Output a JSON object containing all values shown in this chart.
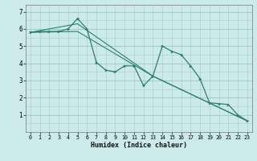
{
  "xlabel": "Humidex (Indice chaleur)",
  "bg_color": "#cceaea",
  "line_color": "#2e7d6e",
  "xlim": [
    -0.5,
    23.5
  ],
  "ylim": [
    0,
    7.4
  ],
  "yticks": [
    1,
    2,
    3,
    4,
    5,
    6,
    7
  ],
  "xticks": [
    0,
    1,
    2,
    3,
    4,
    5,
    6,
    7,
    8,
    9,
    10,
    11,
    12,
    13,
    14,
    15,
    16,
    17,
    18,
    19,
    20,
    21,
    22,
    23
  ],
  "series": [
    [
      0,
      5.8
    ],
    [
      1,
      5.85
    ],
    [
      2,
      5.85
    ],
    [
      3,
      5.85
    ],
    [
      4,
      6.0
    ],
    [
      5,
      6.6
    ],
    [
      6,
      6.0
    ],
    [
      7,
      4.05
    ],
    [
      8,
      3.6
    ],
    [
      9,
      3.5
    ],
    [
      10,
      3.85
    ],
    [
      11,
      3.85
    ],
    [
      12,
      2.7
    ],
    [
      13,
      3.25
    ],
    [
      14,
      5.0
    ],
    [
      15,
      4.7
    ],
    [
      16,
      4.5
    ],
    [
      17,
      3.85
    ],
    [
      18,
      3.1
    ],
    [
      19,
      1.7
    ],
    [
      20,
      1.65
    ],
    [
      21,
      1.6
    ],
    [
      22,
      1.0
    ],
    [
      23,
      0.65
    ]
  ],
  "line2": [
    [
      0,
      5.8
    ],
    [
      5,
      6.3
    ],
    [
      13,
      3.25
    ],
    [
      23,
      0.65
    ]
  ],
  "line3": [
    [
      0,
      5.8
    ],
    [
      5,
      5.85
    ],
    [
      13,
      3.25
    ],
    [
      23,
      0.65
    ]
  ]
}
